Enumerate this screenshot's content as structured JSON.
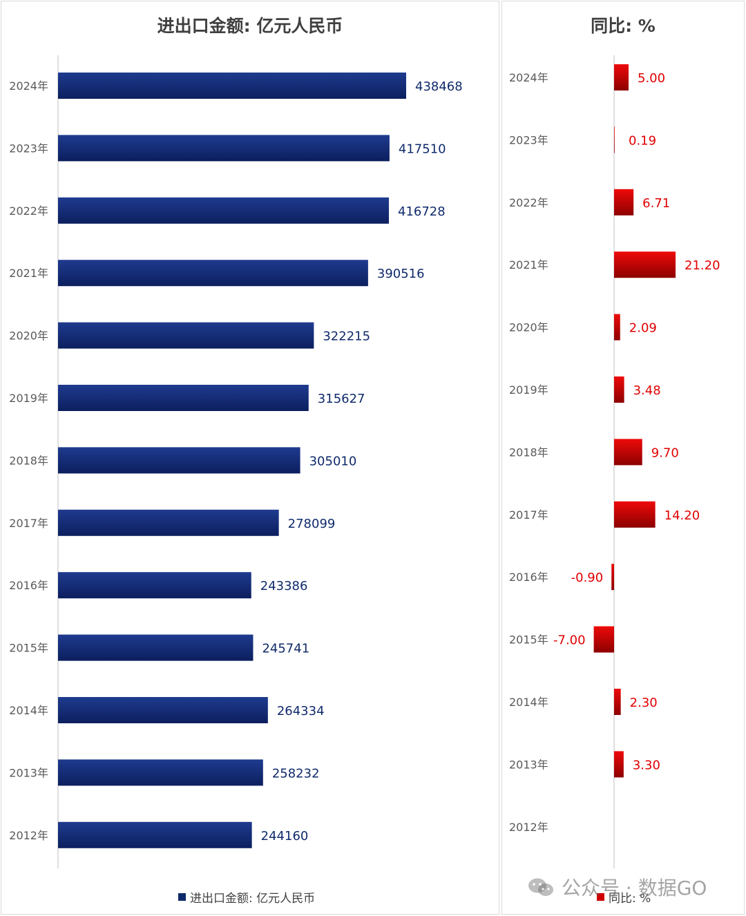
{
  "chart_data": [
    {
      "type": "bar",
      "orientation": "horizontal",
      "title": "进出口金额: 亿元人民币",
      "categories": [
        "2024年",
        "2023年",
        "2022年",
        "2021年",
        "2020年",
        "2019年",
        "2018年",
        "2017年",
        "2016年",
        "2015年",
        "2014年",
        "2013年",
        "2012年"
      ],
      "series": [
        {
          "name": "进出口金额: 亿元人民币",
          "values": [
            438468,
            417510,
            416728,
            390516,
            322215,
            315627,
            305010,
            278099,
            243386,
            245741,
            264334,
            258232,
            244160
          ],
          "labels": [
            "438468",
            "417510",
            "416728",
            "390516",
            "322215",
            "315627",
            "305010",
            "278099",
            "243386",
            "245741",
            "264334",
            "258232",
            "244160"
          ]
        }
      ],
      "xlim": [
        0,
        550000
      ],
      "legend_position": "bottom",
      "colors": {
        "bar_top": "#1f3b8f",
        "bar_bottom": "#0c1f5e",
        "label": "#0f2a6b"
      }
    },
    {
      "type": "bar",
      "orientation": "horizontal",
      "title": "同比: %",
      "categories": [
        "2024年",
        "2023年",
        "2022年",
        "2021年",
        "2020年",
        "2019年",
        "2018年",
        "2017年",
        "2016年",
        "2015年",
        "2014年",
        "2013年",
        "2012年"
      ],
      "series": [
        {
          "name": "同比: %",
          "values": [
            5.0,
            0.19,
            6.71,
            21.2,
            2.09,
            3.48,
            9.7,
            14.2,
            -0.9,
            -7.0,
            2.3,
            3.3,
            null
          ],
          "labels": [
            "5.00",
            "0.19",
            "6.71",
            "21.20",
            "2.09",
            "3.48",
            "9.70",
            "14.20",
            "-0.90",
            "-7.00",
            "2.30",
            "3.30",
            ""
          ]
        }
      ],
      "xlim": [
        -7.5,
        37.5
      ],
      "legend_position": "bottom",
      "colors": {
        "bar_top": "#ee0a0a",
        "bar_bottom": "#8c0000",
        "label": "#e00000"
      }
    }
  ],
  "watermark": {
    "text": "公众号 · 数据GO",
    "icon": "wechat-icon"
  }
}
